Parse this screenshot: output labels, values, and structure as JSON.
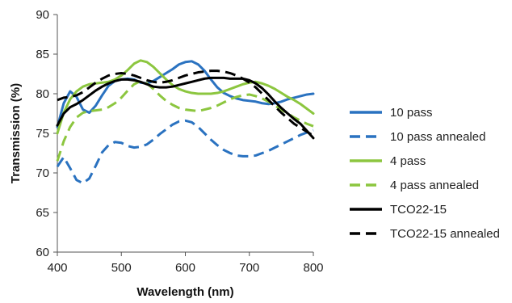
{
  "chart_data": {
    "type": "line",
    "xlabel": "Wavelength (nm)",
    "ylabel": "Transmission (%)",
    "xlim": [
      400,
      800
    ],
    "ylim": [
      60,
      90
    ],
    "xticks": [
      400,
      500,
      600,
      700,
      800
    ],
    "yticks": [
      60,
      65,
      70,
      75,
      80,
      85,
      90
    ],
    "grid": false,
    "legend_position": "right",
    "series": [
      {
        "name": "10 pass",
        "color": "#2a72c0",
        "dashed": false,
        "x": [
          400,
          410,
          420,
          430,
          440,
          450,
          460,
          470,
          480,
          490,
          500,
          510,
          520,
          530,
          540,
          550,
          560,
          570,
          580,
          590,
          600,
          610,
          620,
          630,
          640,
          650,
          660,
          670,
          680,
          690,
          700,
          710,
          720,
          730,
          740,
          750,
          760,
          770,
          780,
          790,
          800
        ],
        "y": [
          75.8,
          78.8,
          80.3,
          79.6,
          78.0,
          77.6,
          78.5,
          79.8,
          81.0,
          81.6,
          81.8,
          81.9,
          81.8,
          81.4,
          81.3,
          81.6,
          82.1,
          82.6,
          83.1,
          83.7,
          84.0,
          84.1,
          83.7,
          82.9,
          81.8,
          80.8,
          80.1,
          79.7,
          79.4,
          79.2,
          79.1,
          79.0,
          78.8,
          78.7,
          78.8,
          79.0,
          79.3,
          79.5,
          79.7,
          79.9,
          80.0
        ]
      },
      {
        "name": "10 pass annealed",
        "color": "#2a72c0",
        "dashed": true,
        "x": [
          400,
          410,
          420,
          430,
          440,
          450,
          460,
          470,
          480,
          490,
          500,
          510,
          520,
          530,
          540,
          550,
          560,
          570,
          580,
          590,
          600,
          610,
          620,
          630,
          640,
          650,
          660,
          670,
          680,
          690,
          700,
          710,
          720,
          730,
          740,
          750,
          760,
          770,
          780,
          790,
          800
        ],
        "y": [
          70.8,
          72.0,
          70.6,
          69.1,
          68.7,
          69.3,
          70.9,
          72.6,
          73.5,
          73.9,
          73.8,
          73.4,
          73.2,
          73.3,
          73.6,
          74.2,
          74.9,
          75.5,
          76.1,
          76.5,
          76.6,
          76.4,
          75.8,
          75.0,
          74.2,
          73.5,
          72.9,
          72.5,
          72.2,
          72.1,
          72.1,
          72.2,
          72.5,
          72.8,
          73.2,
          73.6,
          74.0,
          74.4,
          74.8,
          75.1,
          75.4
        ]
      },
      {
        "name": "4 pass",
        "color": "#8cc63f",
        "dashed": false,
        "x": [
          400,
          410,
          420,
          430,
          440,
          450,
          460,
          470,
          480,
          490,
          500,
          510,
          520,
          530,
          540,
          550,
          560,
          570,
          580,
          590,
          600,
          610,
          620,
          630,
          640,
          650,
          660,
          670,
          680,
          690,
          700,
          710,
          720,
          730,
          740,
          750,
          760,
          770,
          780,
          790,
          800
        ],
        "y": [
          75.0,
          77.6,
          79.3,
          80.3,
          80.9,
          81.2,
          81.3,
          81.4,
          81.5,
          81.8,
          82.3,
          83.0,
          83.8,
          84.2,
          84.0,
          83.4,
          82.6,
          81.8,
          81.1,
          80.6,
          80.3,
          80.1,
          80.0,
          80.0,
          80.0,
          80.1,
          80.3,
          80.6,
          80.9,
          81.2,
          81.4,
          81.5,
          81.3,
          81.0,
          80.6,
          80.1,
          79.6,
          79.2,
          78.7,
          78.1,
          77.5
        ]
      },
      {
        "name": "4 pass annealed",
        "color": "#8cc63f",
        "dashed": true,
        "x": [
          400,
          410,
          420,
          430,
          440,
          450,
          460,
          470,
          480,
          490,
          500,
          510,
          520,
          530,
          540,
          550,
          560,
          570,
          580,
          590,
          600,
          610,
          620,
          630,
          640,
          650,
          660,
          670,
          680,
          690,
          700,
          710,
          720,
          730,
          740,
          750,
          760,
          770,
          780,
          790,
          800
        ],
        "y": [
          71.5,
          74.0,
          75.8,
          77.0,
          77.6,
          77.8,
          77.9,
          78.0,
          78.3,
          78.8,
          79.5,
          80.4,
          81.2,
          81.6,
          81.3,
          80.6,
          79.8,
          79.1,
          78.6,
          78.2,
          78.0,
          77.9,
          77.8,
          78.0,
          78.2,
          78.5,
          78.9,
          79.3,
          79.6,
          79.8,
          79.9,
          79.7,
          79.4,
          79.0,
          78.5,
          78.0,
          77.5,
          77.0,
          76.6,
          76.2,
          75.9
        ]
      },
      {
        "name": "TCO22-15",
        "color": "#000000",
        "dashed": false,
        "x": [
          400,
          410,
          420,
          430,
          440,
          450,
          460,
          470,
          480,
          490,
          500,
          510,
          520,
          530,
          540,
          550,
          560,
          570,
          580,
          590,
          600,
          610,
          620,
          630,
          640,
          650,
          660,
          670,
          680,
          690,
          700,
          710,
          720,
          730,
          740,
          750,
          760,
          770,
          780,
          790,
          800
        ],
        "y": [
          76.0,
          77.5,
          78.3,
          78.7,
          79.2,
          79.8,
          80.4,
          80.9,
          81.3,
          81.6,
          81.8,
          81.8,
          81.7,
          81.5,
          81.2,
          80.9,
          80.8,
          80.8,
          80.9,
          81.1,
          81.3,
          81.5,
          81.7,
          81.9,
          82.0,
          82.0,
          82.0,
          81.9,
          81.9,
          81.9,
          81.7,
          81.3,
          80.7,
          79.9,
          79.0,
          78.2,
          77.5,
          76.8,
          76.2,
          75.3,
          74.4
        ]
      },
      {
        "name": "TCO22-15 annealed",
        "color": "#000000",
        "dashed": true,
        "x": [
          400,
          410,
          420,
          430,
          440,
          450,
          460,
          470,
          480,
          490,
          500,
          510,
          520,
          530,
          540,
          550,
          560,
          570,
          580,
          590,
          600,
          610,
          620,
          630,
          640,
          650,
          660,
          670,
          680,
          690,
          700,
          710,
          720,
          730,
          740,
          750,
          760,
          770,
          780,
          790,
          800
        ],
        "y": [
          79.2,
          79.5,
          79.6,
          79.8,
          80.2,
          80.8,
          81.4,
          81.9,
          82.3,
          82.5,
          82.6,
          82.5,
          82.3,
          82.0,
          81.7,
          81.5,
          81.4,
          81.5,
          81.7,
          82.0,
          82.3,
          82.5,
          82.7,
          82.8,
          82.9,
          82.9,
          82.8,
          82.6,
          82.3,
          81.9,
          81.4,
          80.8,
          80.0,
          79.2,
          78.4,
          77.6,
          76.9,
          76.2,
          75.7,
          75.2,
          74.7
        ]
      }
    ]
  }
}
